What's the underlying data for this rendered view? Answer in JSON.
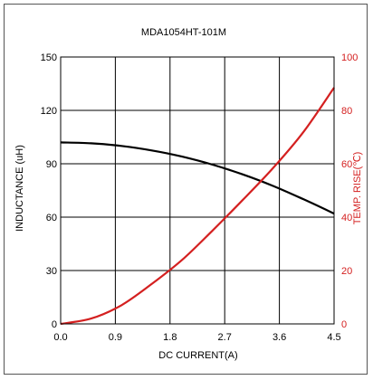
{
  "chart_data": {
    "type": "line",
    "title": "MDA1054HT-101M",
    "xlabel": "DC CURRENT(A)",
    "ylabel_left": "INDUCTANCE (uH)",
    "ylabel_right": "TEMP. RISE(℃)",
    "xlim": [
      0,
      4.5
    ],
    "ylim_left": [
      0,
      150
    ],
    "ylim_right": [
      0,
      100
    ],
    "x_ticks": [
      "0.0",
      "0.9",
      "1.8",
      "2.7",
      "3.6",
      "4.5"
    ],
    "y_ticks_left": [
      "0",
      "30",
      "60",
      "90",
      "120",
      "150"
    ],
    "y_ticks_right": [
      "0",
      "20",
      "40",
      "60",
      "80",
      "100"
    ],
    "grid": true,
    "colors": {
      "inductance": "#000000",
      "temperature": "#d42020",
      "right_axis": "#d42020"
    },
    "series": [
      {
        "axis": "left",
        "x": [
          0.0,
          0.5,
          1.0,
          1.5,
          2.0,
          2.5,
          3.0,
          3.5,
          4.0,
          4.5
        ],
        "values": [
          102,
          101.5,
          100,
          97.5,
          94,
          89.5,
          84,
          77.5,
          70,
          62
        ]
      },
      {
        "axis": "right",
        "x": [
          0.0,
          0.5,
          1.0,
          1.5,
          2.0,
          2.5,
          3.0,
          3.5,
          4.0,
          4.5
        ],
        "values": [
          0,
          2,
          7,
          15,
          24,
          35,
          46.5,
          58.5,
          72,
          88.5
        ]
      }
    ]
  }
}
